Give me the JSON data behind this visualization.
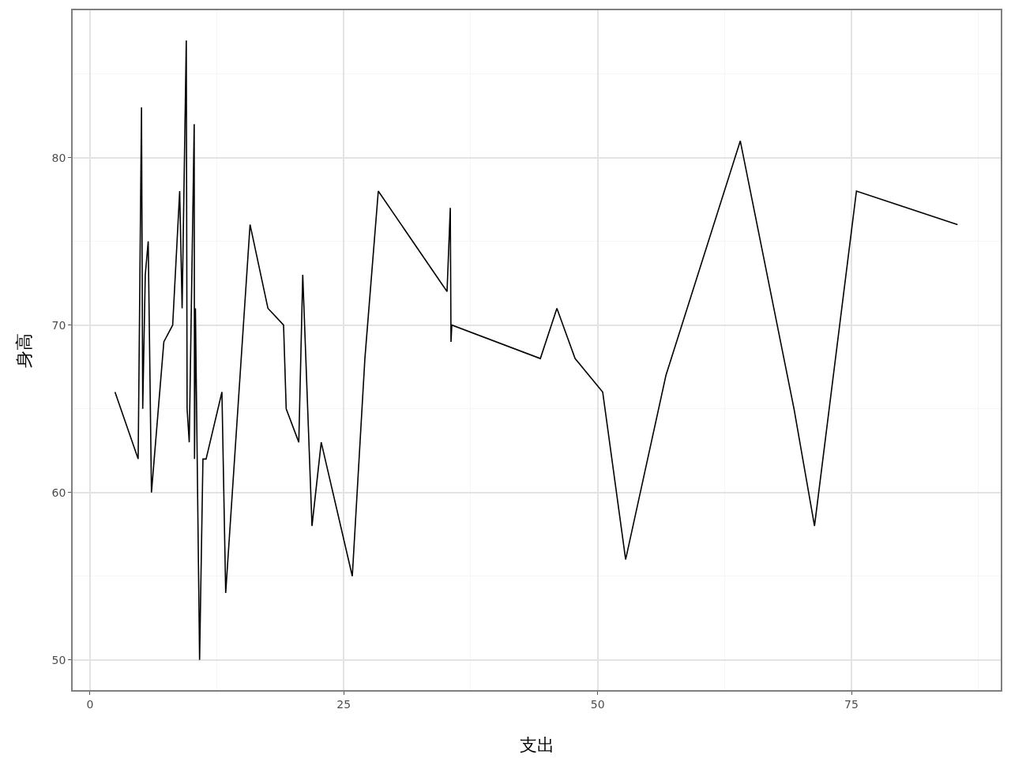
{
  "chart_data": {
    "type": "line",
    "xlabel": "支出",
    "ylabel": "身高",
    "color": "#000000",
    "grid": true,
    "legend": false,
    "marker": "none",
    "line_style": "solid",
    "x": [
      2.47,
      4.75,
      5.08,
      5.2,
      5.45,
      5.74,
      6.06,
      7.28,
      8.15,
      8.84,
      9.08,
      9.49,
      9.57,
      9.78,
      10.27,
      10.3,
      10.39,
      10.8,
      11.13,
      11.44,
      13.0,
      13.37,
      15.77,
      17.53,
      19.07,
      19.33,
      20.57,
      20.96,
      21.87,
      22.78,
      25.84,
      27.08,
      28.4,
      35.17,
      35.49,
      35.56,
      35.64,
      44.36,
      45.99,
      47.78,
      50.5,
      52.76,
      56.73,
      64.05,
      69.34,
      71.36,
      75.49,
      85.45
    ],
    "values": [
      66,
      62,
      83,
      65,
      73,
      75,
      60,
      69,
      70,
      78,
      71,
      87,
      65,
      63,
      82,
      62,
      71,
      50,
      62,
      62,
      66,
      54,
      76,
      71,
      70,
      65,
      63,
      73,
      58,
      63,
      55,
      68,
      78,
      72,
      77,
      69,
      70,
      68,
      71,
      68,
      66,
      56,
      67,
      81,
      65,
      58,
      78,
      76
    ],
    "xlim": [
      -1.7,
      89.7
    ],
    "ylim": [
      48.2,
      88.8
    ],
    "xticks": [
      0,
      {
        "value": 12.5,
        "label": null
      },
      25,
      {
        "value": 37.5,
        "label": null
      },
      50,
      {
        "value": 62.5,
        "label": null
      },
      75,
      {
        "value": 87.5,
        "label": null
      }
    ],
    "yticks": [
      50,
      {
        "value": 55,
        "label": null
      },
      60,
      {
        "value": 65,
        "label": null
      },
      70,
      {
        "value": 75,
        "label": null
      },
      80,
      {
        "value": 85,
        "label": null
      }
    ]
  }
}
